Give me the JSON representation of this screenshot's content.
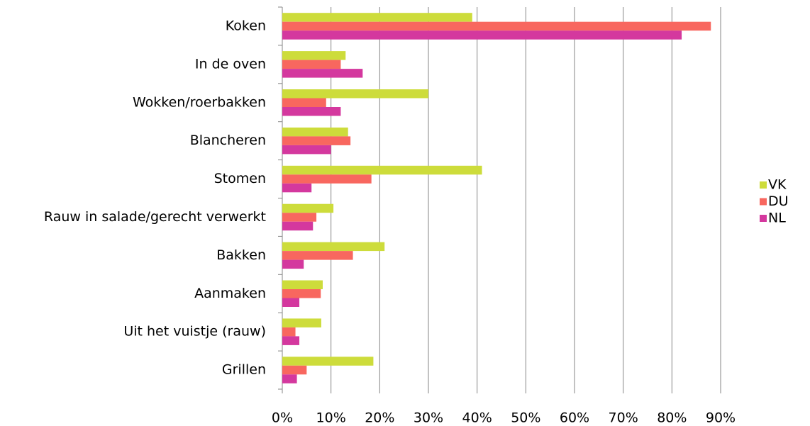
{
  "chart_data": {
    "type": "hbar",
    "categories": [
      "Koken",
      "In de oven",
      "Wokken/roerbakken",
      "Blancheren",
      "Stomen",
      "Rauw in salade/gerecht verwerkt",
      "Bakken",
      "Aanmaken",
      "Uit het vuistje (rauw)",
      "Grillen"
    ],
    "series": [
      {
        "name": "VK",
        "color": "#cddc3b",
        "values": [
          39,
          13,
          30,
          13.5,
          41,
          10.5,
          21,
          8.3,
          8,
          18.7
        ]
      },
      {
        "name": "DU",
        "color": "#f8675f",
        "values": [
          88,
          12,
          9,
          14,
          18.3,
          7,
          14.5,
          7.9,
          2.7,
          5
        ]
      },
      {
        "name": "NL",
        "color": "#d4389e",
        "values": [
          82,
          16.5,
          12,
          10,
          6,
          6.3,
          4.4,
          3.5,
          3.5,
          3
        ]
      }
    ],
    "xlim": [
      0,
      90
    ],
    "xticks": [
      {
        "value": 0,
        "label": "0%"
      },
      {
        "value": 10,
        "label": "10%"
      },
      {
        "value": 20,
        "label": "20%"
      },
      {
        "value": 30,
        "label": "30%"
      },
      {
        "value": 40,
        "label": "40%"
      },
      {
        "value": 50,
        "label": "50%"
      },
      {
        "value": 60,
        "label": "60%"
      },
      {
        "value": 70,
        "label": "70%"
      },
      {
        "value": 80,
        "label": "80%"
      },
      {
        "value": 90,
        "label": "90%"
      }
    ],
    "grid": true,
    "legend": "right"
  }
}
